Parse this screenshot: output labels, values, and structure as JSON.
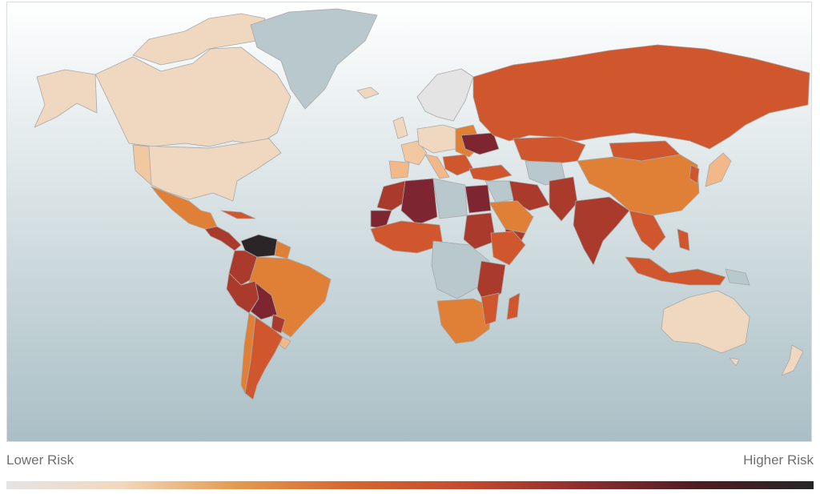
{
  "legend": {
    "low_label": "Lower Risk",
    "high_label": "Higher Risk",
    "gradient_stops": [
      "#e4e4e4",
      "#f2d8bd",
      "#e39a4f",
      "#d4662e",
      "#c24b2f",
      "#8e2d2f",
      "#4e1d22",
      "#262628"
    ]
  },
  "map": {
    "projection": "world-robinson-like",
    "ocean_gradient": [
      "#ffffff",
      "#a9bfc5"
    ],
    "no_data_color": "#b8c8cc",
    "risk_colors": {
      "lower": "#f0d8c0",
      "low": "#f2b889",
      "moderate": "#e08036",
      "elevated": "#d0572d",
      "high": "#a93a2c",
      "very_high": "#7d2530",
      "extreme": "#2b2527"
    }
  }
}
